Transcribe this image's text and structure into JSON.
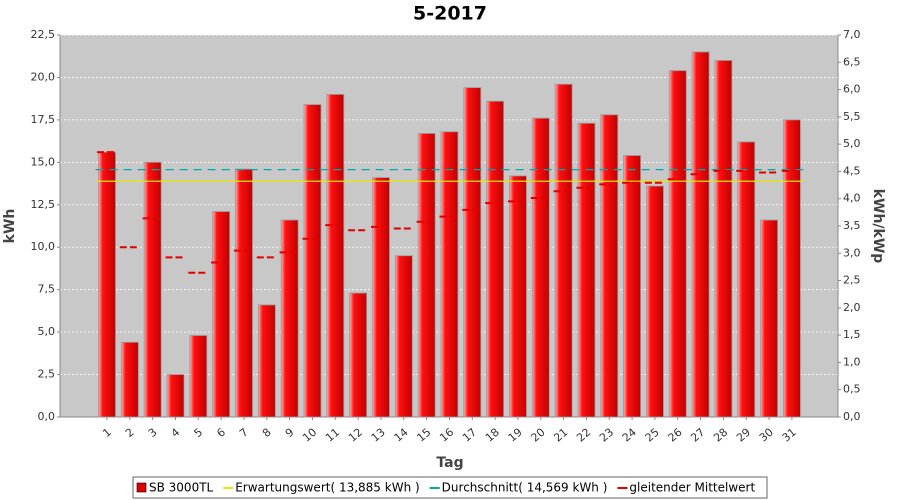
{
  "chart_data": {
    "type": "bar",
    "title": "5-2017",
    "xlabel": "Tag",
    "ylabel": "kWh",
    "y2label": "kWh/kWp",
    "categories": [
      "1",
      "2",
      "3",
      "4",
      "5",
      "6",
      "7",
      "8",
      "9",
      "10",
      "11",
      "12",
      "13",
      "14",
      "15",
      "16",
      "17",
      "18",
      "19",
      "20",
      "21",
      "22",
      "23",
      "24",
      "25",
      "26",
      "27",
      "28",
      "29",
      "30",
      "31"
    ],
    "series": [
      {
        "name": "SB 3000TL",
        "kind": "bar",
        "color": "#e00000",
        "values": [
          15.6,
          4.4,
          15.0,
          2.5,
          4.8,
          12.1,
          14.6,
          6.6,
          11.6,
          18.4,
          19.0,
          7.3,
          14.1,
          9.5,
          16.7,
          16.8,
          19.4,
          18.6,
          14.2,
          17.6,
          19.6,
          17.3,
          17.8,
          15.4,
          13.6,
          20.4,
          21.5,
          21.0,
          16.2,
          11.6,
          17.5
        ]
      },
      {
        "name": "Erwartungswert( 13,885 kWh )",
        "kind": "hline",
        "color": "#e8e800",
        "value": 13.885
      },
      {
        "name": "Durchschnitt( 14,569 kWh )",
        "kind": "hline-dashed",
        "color": "#00aaaa",
        "value": 14.569
      },
      {
        "name": "gleitender Mittelwert",
        "kind": "dash",
        "color": "#e00000",
        "values": [
          15.6,
          10.0,
          11.7,
          9.4,
          8.5,
          9.1,
          9.8,
          9.4,
          9.7,
          10.5,
          11.3,
          11.0,
          11.2,
          11.1,
          11.5,
          11.8,
          12.2,
          12.6,
          12.7,
          12.9,
          13.3,
          13.5,
          13.7,
          13.8,
          13.8,
          14.0,
          14.3,
          14.5,
          14.5,
          14.4,
          14.5
        ]
      }
    ],
    "ylim": [
      0,
      22.5
    ],
    "yticks": [
      {
        "value": 0,
        "label": "0,0"
      },
      {
        "value": 2.5,
        "label": "2,5"
      },
      {
        "value": 5,
        "label": "5,0"
      },
      {
        "value": 7.5,
        "label": "7,5"
      },
      {
        "value": 10,
        "label": "10,0"
      },
      {
        "value": 12.5,
        "label": "12,5"
      },
      {
        "value": 15,
        "label": "15,0"
      },
      {
        "value": 17.5,
        "label": "17,5"
      },
      {
        "value": 20,
        "label": "20,0"
      },
      {
        "value": 22.5,
        "label": "22,5"
      }
    ],
    "y2lim": [
      0,
      7.0
    ],
    "y2ticks": [
      {
        "value": 0,
        "label": "0,0"
      },
      {
        "value": 0.5,
        "label": "0,5"
      },
      {
        "value": 1,
        "label": "1,0"
      },
      {
        "value": 1.5,
        "label": "1,5"
      },
      {
        "value": 2,
        "label": "2,0"
      },
      {
        "value": 2.5,
        "label": "2,5"
      },
      {
        "value": 3,
        "label": "3,0"
      },
      {
        "value": 3.5,
        "label": "3,5"
      },
      {
        "value": 4,
        "label": "4,0"
      },
      {
        "value": 4.5,
        "label": "4,5"
      },
      {
        "value": 5,
        "label": "5,0"
      },
      {
        "value": 5.5,
        "label": "5,5"
      },
      {
        "value": 6,
        "label": "6,0"
      },
      {
        "value": 6.5,
        "label": "6,5"
      },
      {
        "value": 7,
        "label": "7,0"
      }
    ],
    "grid": true
  }
}
